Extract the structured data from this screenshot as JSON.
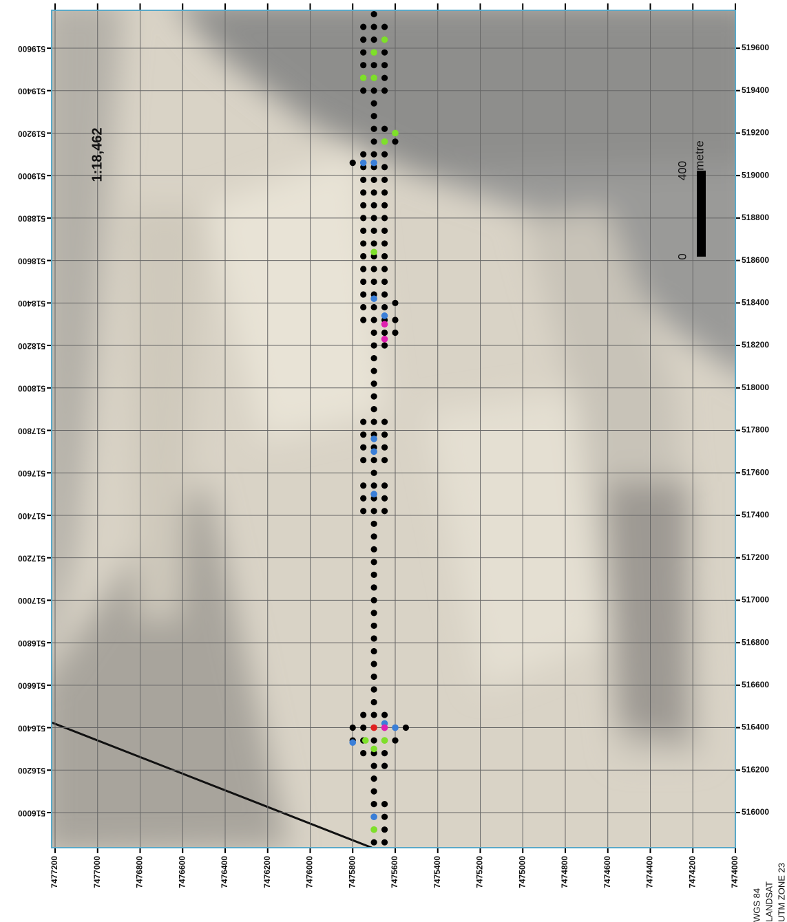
{
  "map": {
    "scale_label": "1:18,462",
    "scale_bar": {
      "zero": "0",
      "length": "400",
      "unit": "metre"
    },
    "projection": [
      "WGS 84",
      "LANDSAT",
      "UTM ZONE 23"
    ],
    "eastings": [
      7477200,
      7477000,
      7476800,
      7476600,
      7476400,
      7476200,
      7476000,
      7475800,
      7475600,
      7475400,
      7475200,
      7475000,
      7474800,
      7474600,
      7474400,
      7474200,
      7474000
    ],
    "northings": [
      519600,
      519400,
      519200,
      519000,
      518800,
      518600,
      518400,
      518200,
      518000,
      517800,
      517600,
      517400,
      517200,
      517000,
      516800,
      516600,
      516400,
      516200,
      516000
    ],
    "point_groups": [
      {
        "easting": 7475700,
        "northings": [
          519760,
          519700,
          519640,
          519580,
          519520,
          519460,
          519400,
          519340,
          519280,
          519220,
          519160,
          519100,
          519040,
          518980,
          518920,
          518860,
          518800,
          518740,
          518680,
          518620,
          518560,
          518500,
          518440,
          518380,
          518320,
          518260,
          518200,
          518140,
          518080,
          518020,
          517960,
          517900,
          517840,
          517780,
          517720,
          517660,
          517600,
          517540,
          517480,
          517420,
          517360,
          517300,
          517240,
          517180,
          517120,
          517060,
          517000,
          516940,
          516880,
          516820,
          516760,
          516700,
          516640,
          516580,
          516520,
          516460,
          516400,
          516340,
          516280,
          516220,
          516160,
          516100,
          516040,
          515980,
          515920,
          515860
        ]
      },
      {
        "easting": 7475750,
        "northings": [
          519700,
          519640,
          519580,
          519520,
          519460,
          519400,
          519100,
          519040,
          518980,
          518920,
          518860,
          518800,
          518740,
          518680,
          518620,
          518560,
          518500,
          518440,
          518380,
          518320,
          517840,
          517780,
          517720,
          517660,
          517540,
          517480,
          517420,
          516460,
          516400,
          516340,
          516280
        ]
      },
      {
        "easting": 7475650,
        "northings": [
          519700,
          519640,
          519580,
          519520,
          519460,
          519400,
          519220,
          519100,
          519040,
          518980,
          518920,
          518860,
          518800,
          518740,
          518680,
          518620,
          518560,
          518500,
          518440,
          518380,
          518320,
          518260,
          518200,
          517840,
          517780,
          517720,
          517660,
          517540,
          517480,
          517420,
          516460,
          516400,
          516340,
          516280,
          516220,
          516040,
          515980,
          515920,
          515860
        ]
      },
      {
        "easting": 7475600,
        "northings": [
          519160,
          518400,
          518320,
          518260,
          516400,
          516340
        ]
      },
      {
        "easting": 7475800,
        "northings": [
          519060,
          516400,
          516340
        ]
      },
      {
        "easting": 7475550,
        "northings": [
          516400
        ]
      }
    ],
    "highlights": [
      {
        "color": "#7ee02a",
        "points": [
          [
            7475650,
            519640
          ],
          [
            7475700,
            519580
          ],
          [
            7475750,
            519460
          ],
          [
            7475700,
            519460
          ],
          [
            7475650,
            519160
          ],
          [
            7475600,
            519200
          ],
          [
            7475700,
            518640
          ],
          [
            7475740,
            516340
          ],
          [
            7475700,
            516300
          ],
          [
            7475650,
            516340
          ],
          [
            7475700,
            515920
          ]
        ]
      },
      {
        "color": "#3a7fd8",
        "points": [
          [
            7475750,
            519060
          ],
          [
            7475700,
            519060
          ],
          [
            7475700,
            518420
          ],
          [
            7475650,
            518340
          ],
          [
            7475700,
            517760
          ],
          [
            7475700,
            517700
          ],
          [
            7475700,
            517500
          ],
          [
            7475650,
            516420
          ],
          [
            7475600,
            516400
          ],
          [
            7475800,
            516330
          ],
          [
            7475700,
            515980
          ]
        ]
      },
      {
        "color": "#e020b0",
        "points": [
          [
            7475650,
            518300
          ],
          [
            7475650,
            518230
          ],
          [
            7475650,
            516400
          ]
        ]
      },
      {
        "color": "#e02020",
        "points": [
          [
            7475700,
            516400
          ]
        ]
      }
    ]
  }
}
